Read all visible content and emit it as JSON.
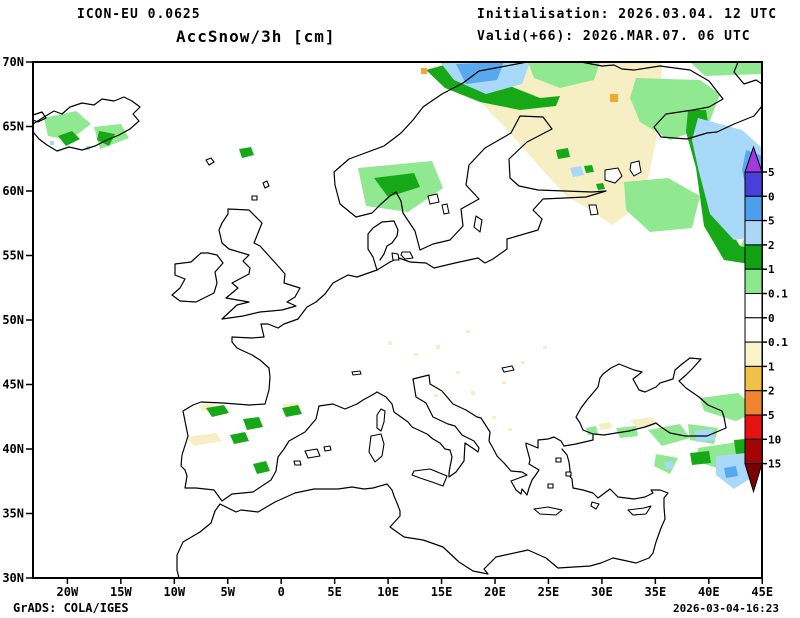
{
  "header": {
    "model_line": "ICON-EU 0.0625",
    "title_line": "AccSnow/3h [cm]",
    "init_line": "Initialisation: 2026.03.04. 12 UTC",
    "valid_line": "Valid(+66): 2026.MAR.07. 06 UTC"
  },
  "footer": {
    "left": "GrADS: COLA/IGES",
    "right": "2026-03-04-16:23"
  },
  "map": {
    "lat_labels": [
      "70N",
      "65N",
      "60N",
      "55N",
      "50N",
      "45N",
      "40N",
      "35N",
      "30N"
    ],
    "lon_labels": [
      "20W",
      "15W",
      "10W",
      "5W",
      "0",
      "5E",
      "10E",
      "15E",
      "20E",
      "25E",
      "30E",
      "35E",
      "40E",
      "45E"
    ]
  },
  "colorbar": {
    "tick_labels": [
      "5",
      "0",
      "5",
      "2",
      "1",
      "0.1",
      "0",
      "0.1",
      "1",
      "2",
      "5",
      "10",
      "15"
    ],
    "segment_colors": [
      "#4840d8",
      "#4d9fee",
      "#aad7f5",
      "#12a112",
      "#8ce88c",
      "#ffffff",
      "#ffffff",
      "#f8f3c8",
      "#f0c146",
      "#ef8530",
      "#e61212",
      "#a30505"
    ],
    "arrow_up_color": "#a238dd",
    "arrow_down_color": "#7c0202"
  }
}
